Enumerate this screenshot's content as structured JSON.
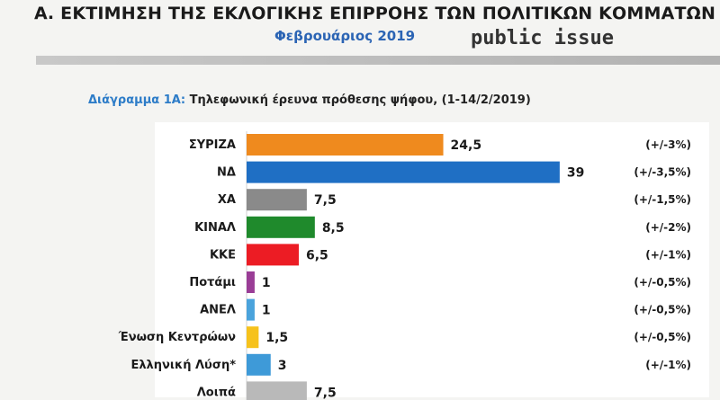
{
  "header": {
    "title": "Α. ΕΚΤΙΜΗΣΗ ΤΗΣ ΕΚΛΟΓΙΚΗΣ ΕΠΙΡΡΟΗΣ ΤΩΝ ΠΟΛΙΤΙΚΩΝ ΚΟΜΜΑΤΩΝ",
    "subtitle": "Φεβρουάριος 2019",
    "brand": "public issue"
  },
  "chart_data": {
    "type": "bar",
    "orientation": "horizontal",
    "title_prefix": "Διάγραμμα 1Α:",
    "title": "Τηλεφωνική έρευνα πρόθεσης ψήφου,  (1-14/2/2019)",
    "categories": [
      "ΣΥΡΙΖΑ",
      "ΝΔ",
      "ΧΑ",
      "ΚΙΝΑΛ",
      "ΚΚΕ",
      "Ποτάμι",
      "ΑΝΕΛ",
      "Ένωση Κεντρώων",
      "Ελληνική Λύση*",
      "Λοιπά"
    ],
    "values": [
      24.5,
      39,
      7.5,
      8.5,
      6.5,
      1,
      1,
      1.5,
      3,
      7.5
    ],
    "value_labels": [
      "24,5",
      "39",
      "7,5",
      "8,5",
      "6,5",
      "1",
      "1",
      "1,5",
      "3",
      "7,5"
    ],
    "margins": [
      "(+/-3%)",
      "(+/-3,5%)",
      "(+/-1,5%)",
      "(+/-2%)",
      "(+/-1%)",
      "(+/-0,5%)",
      "(+/-0,5%)",
      "(+/-0,5%)",
      "(+/-1%)",
      ""
    ],
    "colors": [
      "#ef8a1e",
      "#1f6fc4",
      "#8a8a8a",
      "#1f8a2c",
      "#ec1c24",
      "#9a3d96",
      "#4aa3dc",
      "#f6c21c",
      "#3e9ad8",
      "#b9b9b9"
    ],
    "xlim": [
      0,
      40
    ],
    "grid": false,
    "legend": false
  }
}
